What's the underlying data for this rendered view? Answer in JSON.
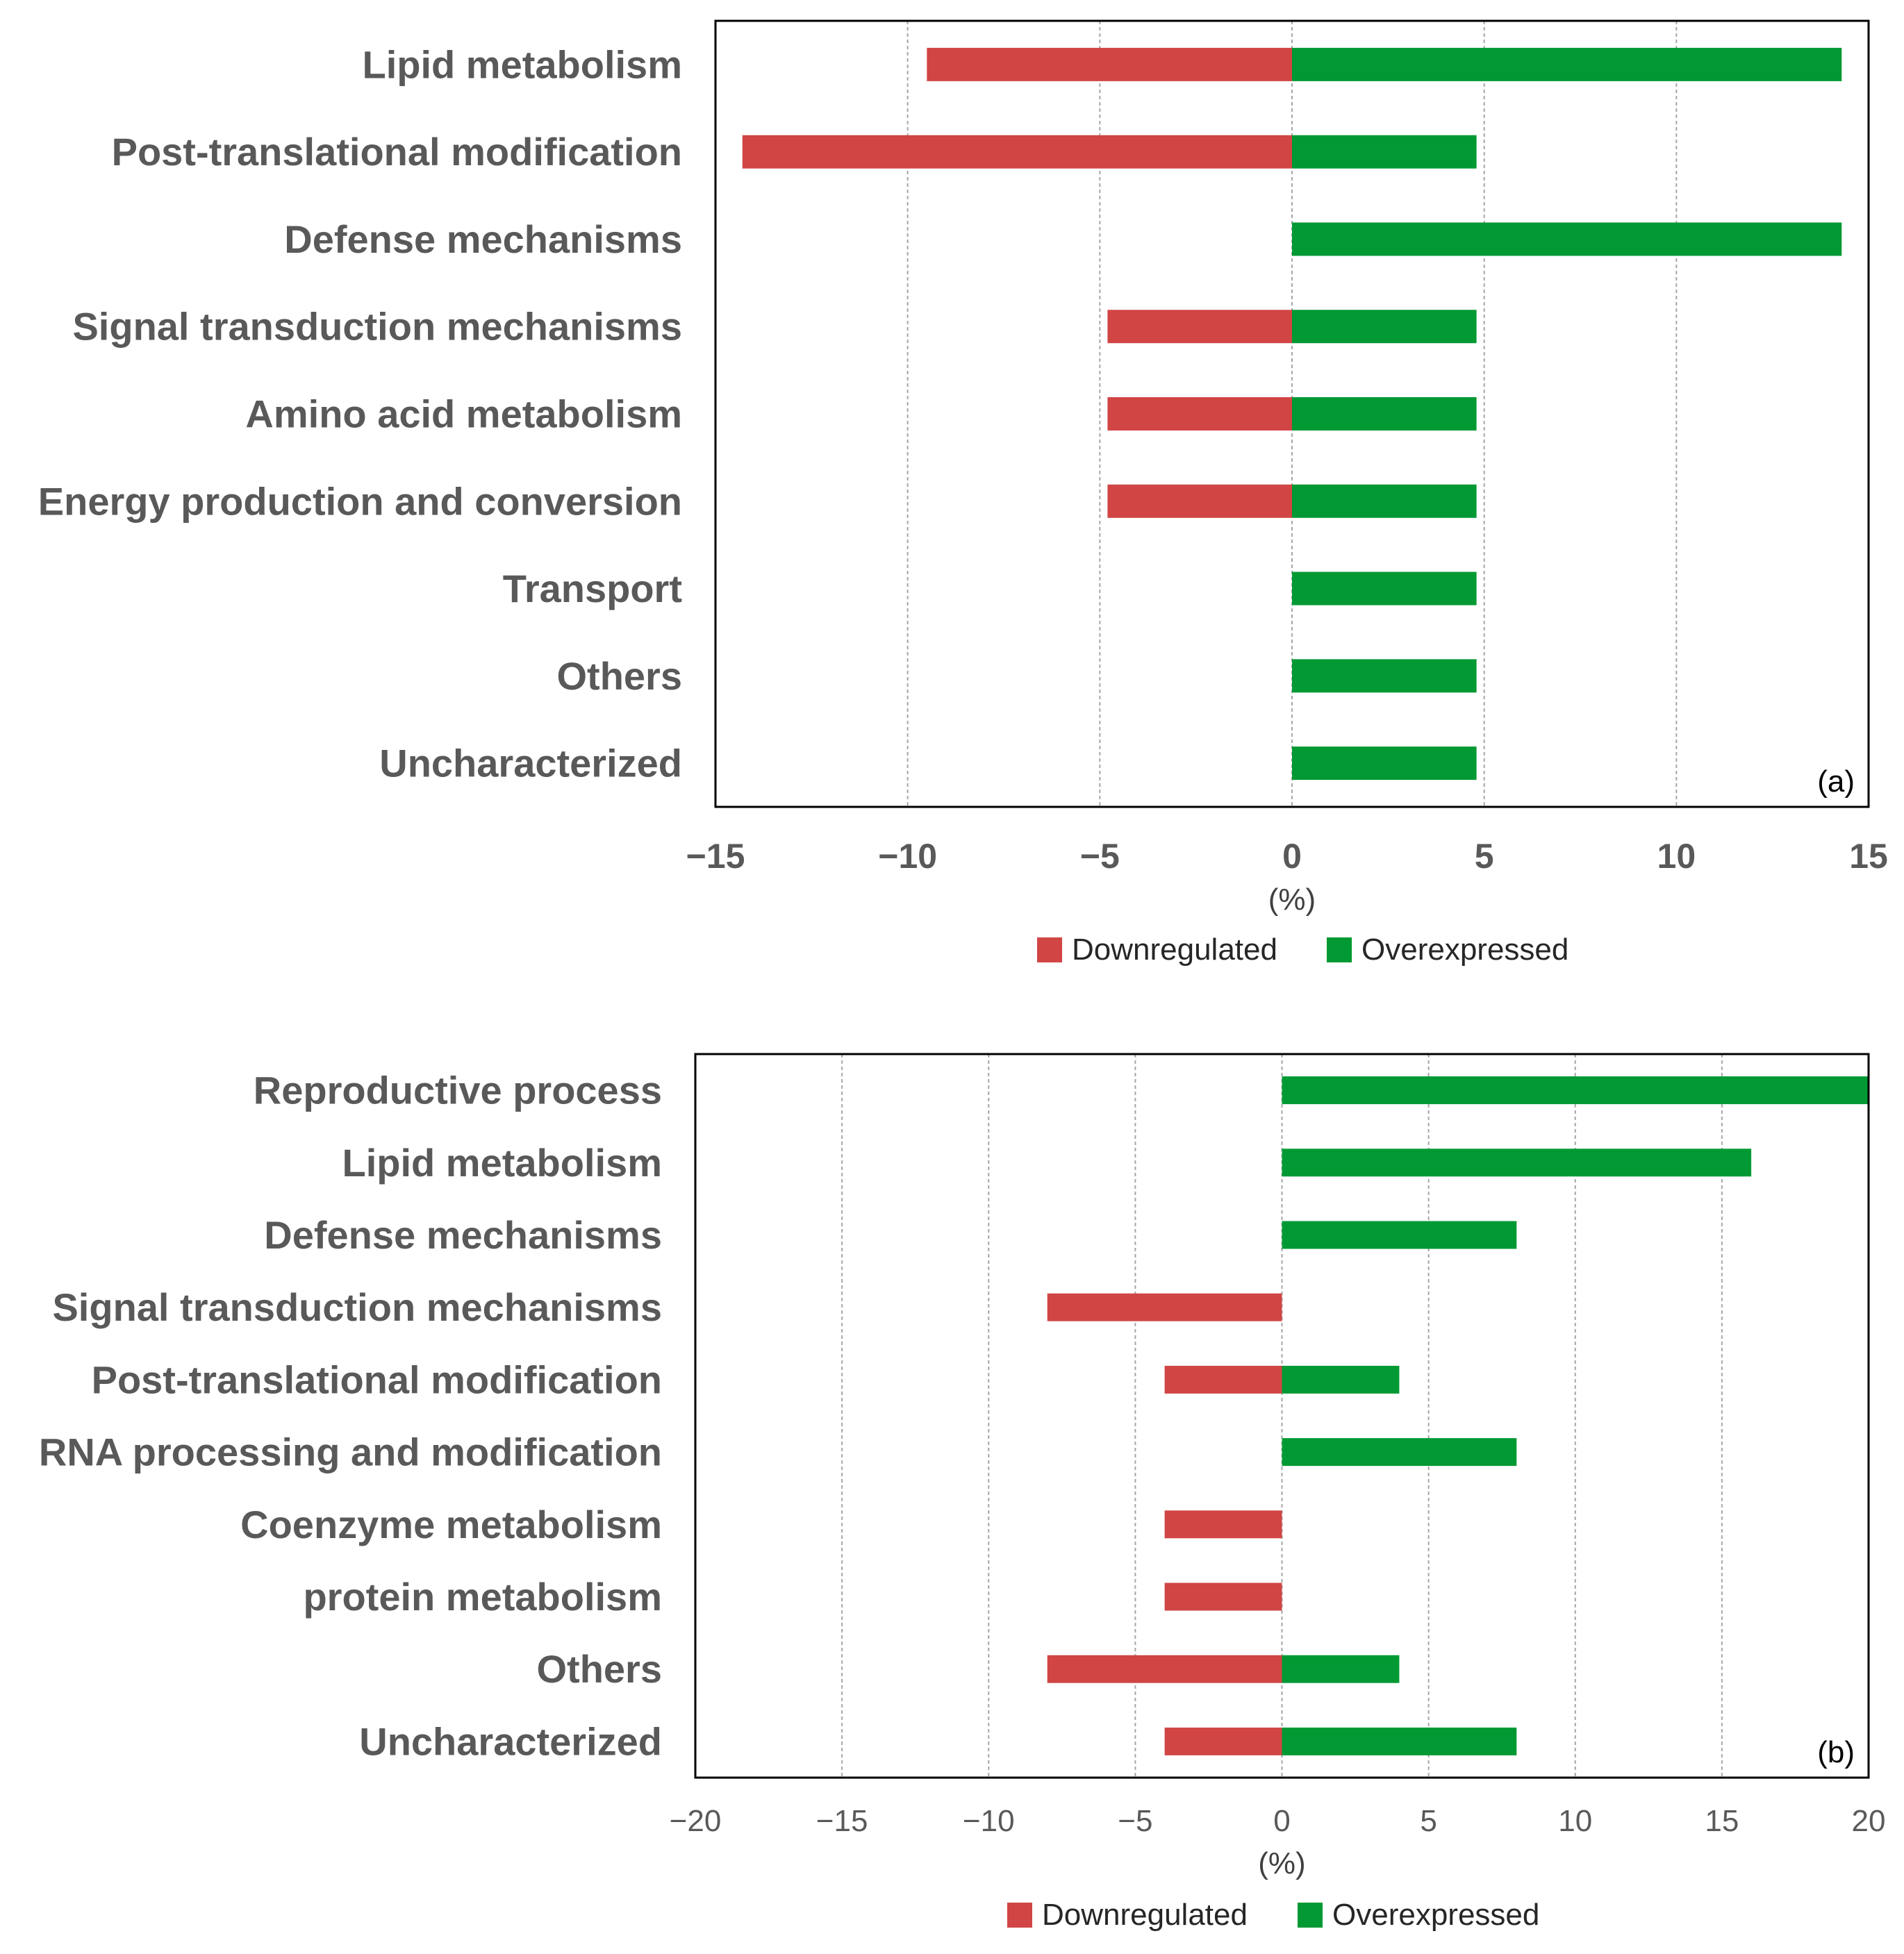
{
  "colors": {
    "down": "#d14545",
    "over": "#009933",
    "grid": "#a6a6a6",
    "frame": "#000000"
  },
  "chart_data": [
    {
      "type": "bar",
      "orientation": "horizontal",
      "panel_label": "(a)",
      "categories": [
        "Lipid metabolism",
        "Post-translational modification",
        "Defense mechanisms",
        "Signal transduction mechanisms",
        "Amino acid metabolism",
        "Energy production and conversion",
        "Transport",
        "Others",
        "Uncharacterized"
      ],
      "series": [
        {
          "name": "Downregulated",
          "values": [
            -9.5,
            -14.3,
            0,
            -4.8,
            -4.8,
            -4.8,
            0,
            0,
            0
          ]
        },
        {
          "name": "Overexpressed",
          "values": [
            14.3,
            4.8,
            14.3,
            4.8,
            4.8,
            4.8,
            4.8,
            4.8,
            4.8
          ]
        }
      ],
      "xlim": [
        -15,
        15
      ],
      "xticks": [
        -15,
        -10,
        -5,
        0,
        5,
        10,
        15
      ],
      "xtick_labels": [
        "−15",
        "−10",
        "−5",
        "0",
        "5",
        "10",
        "15"
      ],
      "xlabel": "(%)",
      "legend": [
        "Downregulated",
        "Overexpressed"
      ],
      "legend_position": "bottom",
      "grid": "vertical-dashed"
    },
    {
      "type": "bar",
      "orientation": "horizontal",
      "panel_label": "(b)",
      "categories": [
        "Reproductive process",
        "Lipid metabolism",
        "Defense mechanisms",
        "Signal transduction mechanisms",
        "Post-translational modification",
        "RNA processing and modification",
        "Coenzyme metabolism",
        "protein metabolism",
        "Others",
        "Uncharacterized"
      ],
      "series": [
        {
          "name": "Downregulated",
          "values": [
            0,
            0,
            0,
            -8,
            -4,
            0,
            -4,
            -4,
            -8,
            -4
          ]
        },
        {
          "name": "Overexpressed",
          "values": [
            20,
            16,
            8,
            0,
            4,
            8,
            0,
            0,
            4,
            8
          ]
        }
      ],
      "xlim": [
        -20,
        20
      ],
      "xticks": [
        -20,
        -15,
        -10,
        -5,
        0,
        5,
        10,
        15,
        20
      ],
      "xtick_labels": [
        "−20",
        "−15",
        "−10",
        "−5",
        "0",
        "5",
        "10",
        "15",
        "20"
      ],
      "xlabel": "(%)",
      "legend": [
        "Downregulated",
        "Overexpressed"
      ],
      "legend_position": "bottom",
      "grid": "vertical-dashed"
    }
  ]
}
